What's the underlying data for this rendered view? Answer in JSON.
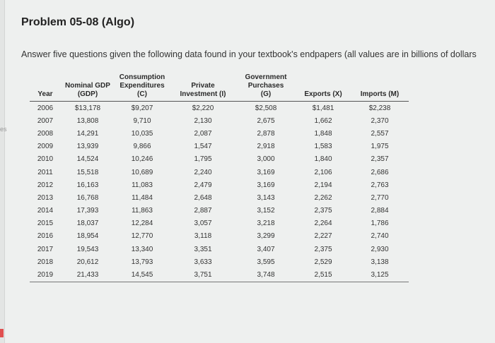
{
  "page": {
    "title": "Problem 05-08 (Algo)",
    "intro": "Answer five questions given the following data found in your textbook's endpapers (all values are in billions of dollars",
    "left_edge_text": "es"
  },
  "table": {
    "headers": {
      "year": "Year",
      "gdp_1": "Nominal GDP",
      "gdp_2": "(GDP)",
      "c_1": "Consumption",
      "c_2": "Expenditures",
      "c_3": "(C)",
      "i_1": "Private",
      "i_2": "Investment (I)",
      "g_1": "Government",
      "g_2": "Purchases",
      "g_3": "(G)",
      "x": "Exports (X)",
      "m": "Imports (M)"
    },
    "rows": [
      [
        "2006",
        "$13,178",
        "$9,207",
        "$2,220",
        "$2,508",
        "$1,481",
        "$2,238"
      ],
      [
        "2007",
        "13,808",
        "9,710",
        "2,130",
        "2,675",
        "1,662",
        "2,370"
      ],
      [
        "2008",
        "14,291",
        "10,035",
        "2,087",
        "2,878",
        "1,848",
        "2,557"
      ],
      [
        "2009",
        "13,939",
        "9,866",
        "1,547",
        "2,918",
        "1,583",
        "1,975"
      ],
      [
        "2010",
        "14,524",
        "10,246",
        "1,795",
        "3,000",
        "1,840",
        "2,357"
      ],
      [
        "2011",
        "15,518",
        "10,689",
        "2,240",
        "3,169",
        "2,106",
        "2,686"
      ],
      [
        "2012",
        "16,163",
        "11,083",
        "2,479",
        "3,169",
        "2,194",
        "2,763"
      ],
      [
        "2013",
        "16,768",
        "11,484",
        "2,648",
        "3,143",
        "2,262",
        "2,770"
      ],
      [
        "2014",
        "17,393",
        "11,863",
        "2,887",
        "3,152",
        "2,375",
        "2,884"
      ],
      [
        "2015",
        "18,037",
        "12,284",
        "3,057",
        "3,218",
        "2,264",
        "1,786"
      ],
      [
        "2016",
        "18,954",
        "12,770",
        "3,118",
        "3,299",
        "2,227",
        "2,740"
      ],
      [
        "2017",
        "19,543",
        "13,340",
        "3,351",
        "3,407",
        "2,375",
        "2,930"
      ],
      [
        "2018",
        "20,612",
        "13,793",
        "3,633",
        "3,595",
        "2,529",
        "3,138"
      ],
      [
        "2019",
        "21,433",
        "14,545",
        "3,751",
        "3,748",
        "2,515",
        "3,125"
      ]
    ]
  }
}
